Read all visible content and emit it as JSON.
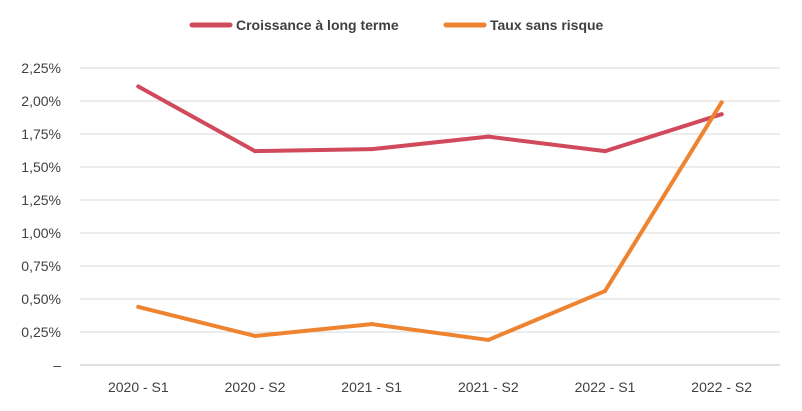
{
  "chart_data": {
    "type": "line",
    "title": "",
    "xlabel": "",
    "ylabel": "",
    "categories": [
      "2020 - S1",
      "2020 - S2",
      "2021 - S1",
      "2021 - S2",
      "2022 - S1",
      "2022 - S2"
    ],
    "ylim": [
      0,
      2.25
    ],
    "yticks": [
      0,
      0.25,
      0.5,
      0.75,
      1.0,
      1.25,
      1.5,
      1.75,
      2.0,
      2.25
    ],
    "ytick_labels": [
      "–",
      "0,25%",
      "0,50%",
      "0,75%",
      "1,00%",
      "1,25%",
      "1,50%",
      "1,75%",
      "2,00%",
      "2,25%"
    ],
    "grid": "horizontal",
    "legend": "top-center",
    "series": [
      {
        "name": "Croissance à long terme",
        "color": "#d04a5c",
        "values": [
          2.11,
          1.62,
          1.635,
          1.73,
          1.62,
          1.9
        ]
      },
      {
        "name": "Taux sans risque",
        "color": "#ee8330",
        "values": [
          0.44,
          0.22,
          0.31,
          0.19,
          0.56,
          1.99
        ]
      }
    ]
  }
}
